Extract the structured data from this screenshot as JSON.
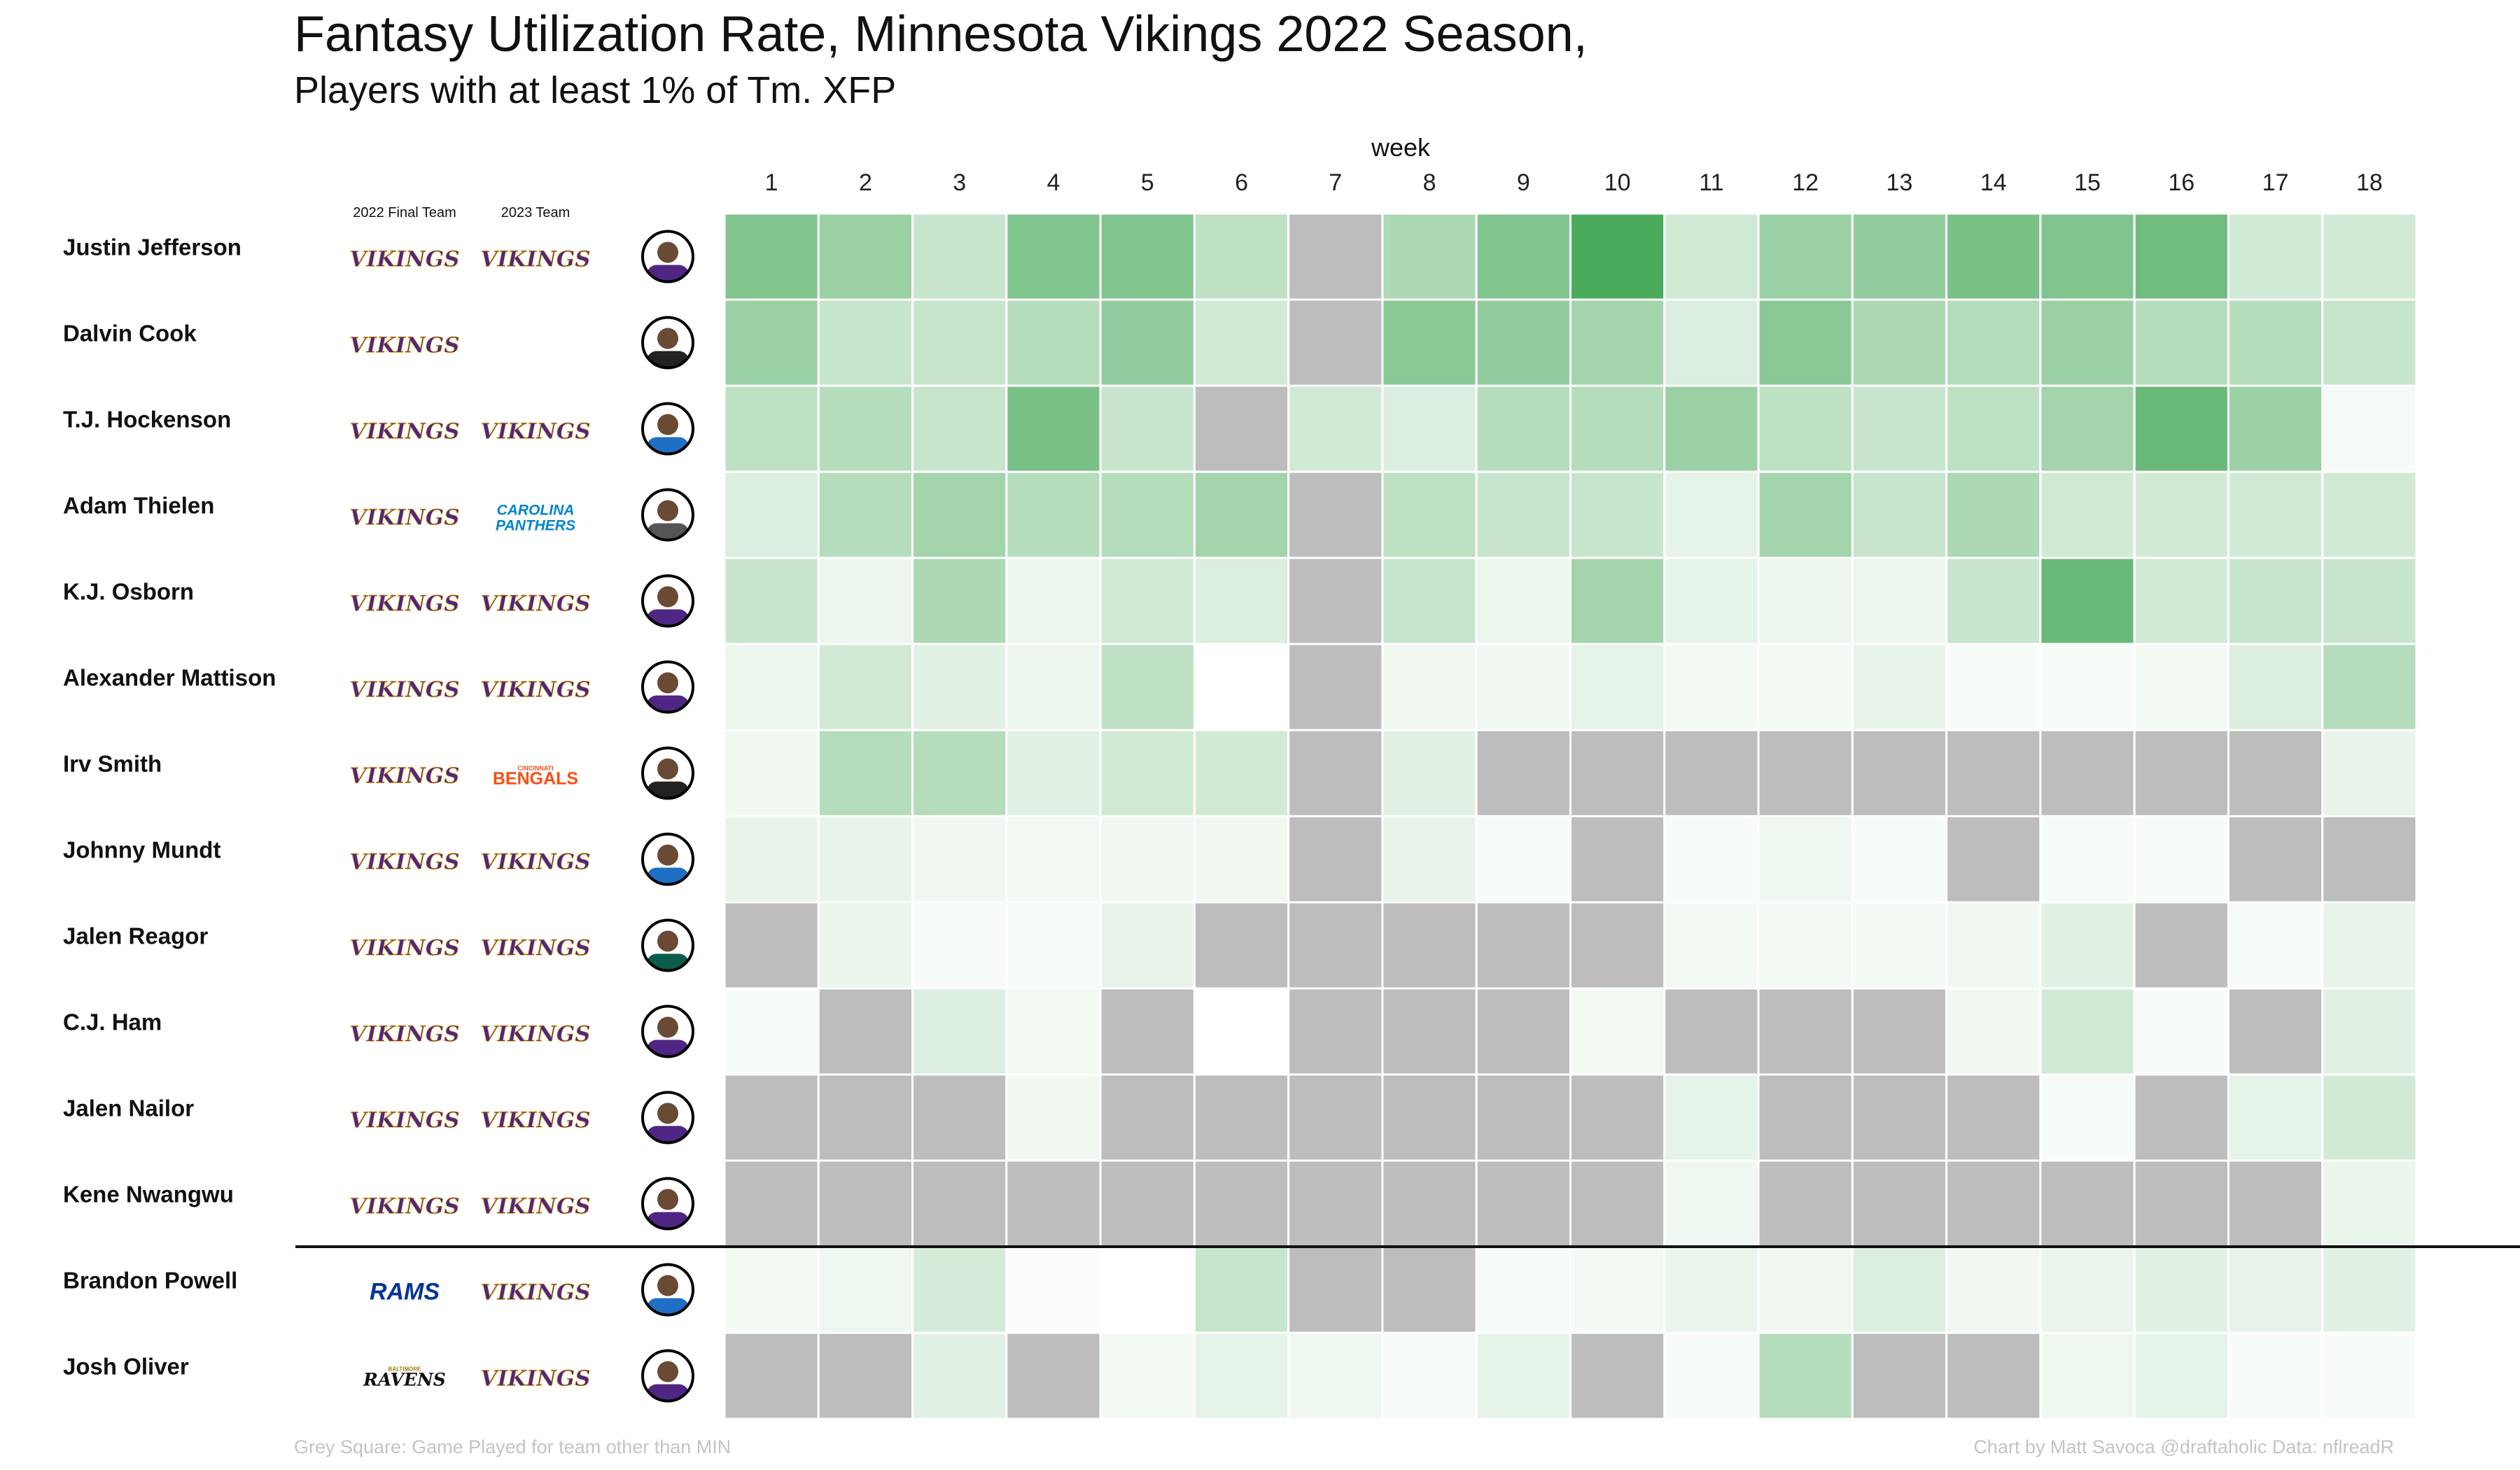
{
  "title": "Fantasy Utilization Rate, Minnesota Vikings 2022 Season,",
  "subtitle": "Players with at least 1% of Tm. XFP",
  "footer": {
    "note": "Grey Square: Game Played for team other than MIN",
    "credit": "Chart by Matt Savoca    @draftaholic    Data: nflreadR"
  },
  "colors": {
    "scale_low": "#ffffff",
    "scale_high": "#4aab5c",
    "other_team": "#bdbdbd",
    "vikings": "#4f2683",
    "vikings_gold": "#ffc62f",
    "rams": "#003594",
    "panthers": "#0085ca",
    "bengals": "#fb4f14",
    "ravens": "#241773"
  },
  "chart_data": {
    "type": "heatmap",
    "xlabel": "week",
    "x": [
      1,
      2,
      3,
      4,
      5,
      6,
      7,
      8,
      9,
      10,
      11,
      12,
      13,
      14,
      15,
      16,
      17,
      18
    ],
    "column_headers": [
      "2022 Final Team",
      "2023 Team"
    ],
    "value_scale": "relative utilization, 0 = none, 1 = max; null = game played for team other than MIN",
    "separator_after_row": 12,
    "players": [
      {
        "name": "Justin Jefferson",
        "team_2022": "Vikings",
        "team_2023": "Vikings",
        "headshot": "jersey-purple-icon",
        "values": [
          0.65,
          0.5,
          0.25,
          0.65,
          0.65,
          0.3,
          null,
          0.4,
          0.65,
          1.0,
          0.2,
          0.5,
          0.55,
          0.7,
          0.65,
          0.75,
          0.2,
          0.2
        ]
      },
      {
        "name": "Dalvin Cook",
        "team_2022": "Vikings",
        "team_2023": "",
        "headshot": "jersey-black-icon",
        "values": [
          0.5,
          0.25,
          0.25,
          0.35,
          0.55,
          0.2,
          null,
          0.6,
          0.55,
          0.45,
          0.15,
          0.6,
          0.4,
          0.35,
          0.5,
          0.35,
          0.35,
          0.25
        ]
      },
      {
        "name": "T.J. Hockenson",
        "team_2022": "Vikings",
        "team_2023": "Vikings",
        "headshot": "jersey-blue-icon",
        "values": [
          0.3,
          0.35,
          0.25,
          0.7,
          0.25,
          null,
          0.2,
          0.15,
          0.35,
          0.35,
          0.5,
          0.3,
          0.25,
          0.3,
          0.45,
          0.8,
          0.5,
          0.03
        ]
      },
      {
        "name": "Adam Thielen",
        "team_2022": "Vikings",
        "team_2023": "Panthers",
        "headshot": "jersey-grey-icon",
        "values": [
          0.15,
          0.35,
          0.45,
          0.35,
          0.35,
          0.45,
          null,
          0.3,
          0.25,
          0.25,
          0.1,
          0.45,
          0.25,
          0.4,
          0.2,
          0.2,
          0.2,
          0.2
        ]
      },
      {
        "name": "K.J. Osborn",
        "team_2022": "Vikings",
        "team_2023": "Vikings",
        "headshot": "jersey-purple-icon",
        "values": [
          0.25,
          0.07,
          0.4,
          0.07,
          0.2,
          0.15,
          null,
          0.25,
          0.07,
          0.45,
          0.1,
          0.07,
          0.07,
          0.25,
          0.8,
          0.2,
          0.25,
          0.25
        ]
      },
      {
        "name": "Alexander Mattison",
        "team_2022": "Vikings",
        "team_2023": "Vikings",
        "headshot": "jersey-purple-icon",
        "values": [
          0.07,
          0.2,
          0.12,
          0.07,
          0.3,
          0.0,
          null,
          0.05,
          0.05,
          0.1,
          0.04,
          0.04,
          0.09,
          0.02,
          0.02,
          0.04,
          0.15,
          0.35
        ]
      },
      {
        "name": "Irv Smith",
        "team_2022": "Vikings",
        "team_2023": "Bengals",
        "headshot": "jersey-black-icon",
        "values": [
          0.05,
          0.35,
          0.35,
          0.12,
          0.2,
          0.2,
          null,
          0.12,
          null,
          null,
          null,
          null,
          null,
          null,
          null,
          null,
          null,
          0.09
        ]
      },
      {
        "name": "Johnny Mundt",
        "team_2022": "Vikings",
        "team_2023": "Vikings",
        "headshot": "jersey-blue-icon",
        "values": [
          0.09,
          0.09,
          0.05,
          0.04,
          0.05,
          0.05,
          null,
          0.09,
          0.02,
          null,
          0.02,
          0.06,
          0.02,
          null,
          0.02,
          0.02,
          null,
          null
        ]
      },
      {
        "name": "Jalen Reagor",
        "team_2022": "Vikings",
        "team_2023": "Vikings",
        "headshot": "jersey-green-icon",
        "values": [
          null,
          0.08,
          0.02,
          0.03,
          0.09,
          null,
          null,
          null,
          null,
          null,
          0.04,
          0.04,
          0.04,
          0.05,
          0.12,
          null,
          0.03,
          0.09
        ]
      },
      {
        "name": "C.J. Ham",
        "team_2022": "Vikings",
        "team_2023": "Vikings",
        "headshot": "jersey-purple-icon",
        "values": [
          0.02,
          null,
          0.15,
          0.04,
          null,
          0.0,
          null,
          null,
          null,
          0.04,
          null,
          null,
          null,
          0.05,
          0.2,
          0.02,
          null,
          0.12
        ]
      },
      {
        "name": "Jalen Nailor",
        "team_2022": "Vikings",
        "team_2023": "Vikings",
        "headshot": "jersey-purple-icon",
        "values": [
          null,
          null,
          null,
          0.05,
          null,
          null,
          null,
          null,
          null,
          null,
          0.1,
          null,
          null,
          null,
          0.02,
          null,
          0.1,
          0.2
        ]
      },
      {
        "name": "Kene Nwangwu",
        "team_2022": "Vikings",
        "team_2023": "Vikings",
        "headshot": "jersey-purple-icon",
        "values": [
          null,
          null,
          null,
          null,
          null,
          null,
          null,
          null,
          null,
          null,
          0.06,
          null,
          null,
          null,
          null,
          null,
          null,
          0.08
        ]
      },
      {
        "name": "Brandon Powell",
        "team_2022": "Rams",
        "team_2023": "Vikings",
        "headshot": "jersey-blue-icon",
        "values": [
          0.04,
          0.06,
          0.18,
          0.01,
          0.0,
          0.25,
          null,
          null,
          0.02,
          0.04,
          0.08,
          0.05,
          0.15,
          0.05,
          0.08,
          0.12,
          0.09,
          0.12
        ]
      },
      {
        "name": "Josh Oliver",
        "team_2022": "Ravens",
        "team_2023": "Vikings",
        "headshot": "jersey-purple-icon",
        "values": [
          null,
          null,
          0.12,
          null,
          0.04,
          0.1,
          0.06,
          0.03,
          0.1,
          null,
          0.02,
          0.35,
          null,
          null,
          0.06,
          0.1,
          0.02,
          0.02
        ]
      }
    ]
  }
}
